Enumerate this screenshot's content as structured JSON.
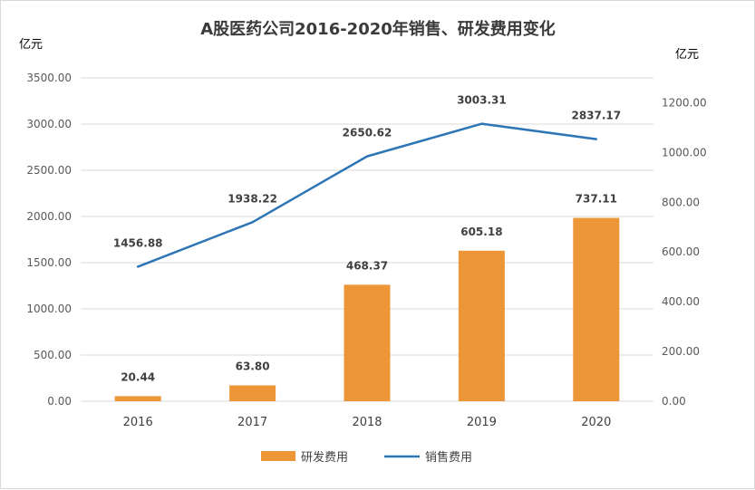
{
  "chart_data": {
    "type": "bar+line",
    "title": "A股医药公司2016-2020年销售、研发费用变化",
    "left_unit": "亿元",
    "right_unit": "亿元",
    "categories": [
      "2016",
      "2017",
      "2018",
      "2019",
      "2020"
    ],
    "left_ylim": [
      0,
      3500
    ],
    "left_ticks": [
      "0.00",
      "500.00",
      "1000.00",
      "1500.00",
      "2000.00",
      "2500.00",
      "3000.00",
      "3500.00"
    ],
    "right_ylim": [
      0,
      1300
    ],
    "right_ticks": [
      "0.00",
      "200.00",
      "400.00",
      "600.00",
      "800.00",
      "1000.00",
      "1200.00"
    ],
    "grid": true,
    "legend_position": "bottom",
    "series": [
      {
        "name": "研发费用",
        "type": "bar",
        "axis": "right",
        "color": "#ed9637",
        "values": [
          20.44,
          63.8,
          468.37,
          605.18,
          737.11
        ],
        "labels": [
          "20.44",
          "63.80",
          "468.37",
          "605.18",
          "737.11"
        ]
      },
      {
        "name": "销售费用",
        "type": "line",
        "axis": "left",
        "color": "#2e75b6",
        "values": [
          1456.88,
          1938.22,
          2650.62,
          3003.31,
          2837.17
        ],
        "labels": [
          "1456.88",
          "1938.22",
          "2650.62",
          "3003.31",
          "2837.17"
        ]
      }
    ]
  }
}
